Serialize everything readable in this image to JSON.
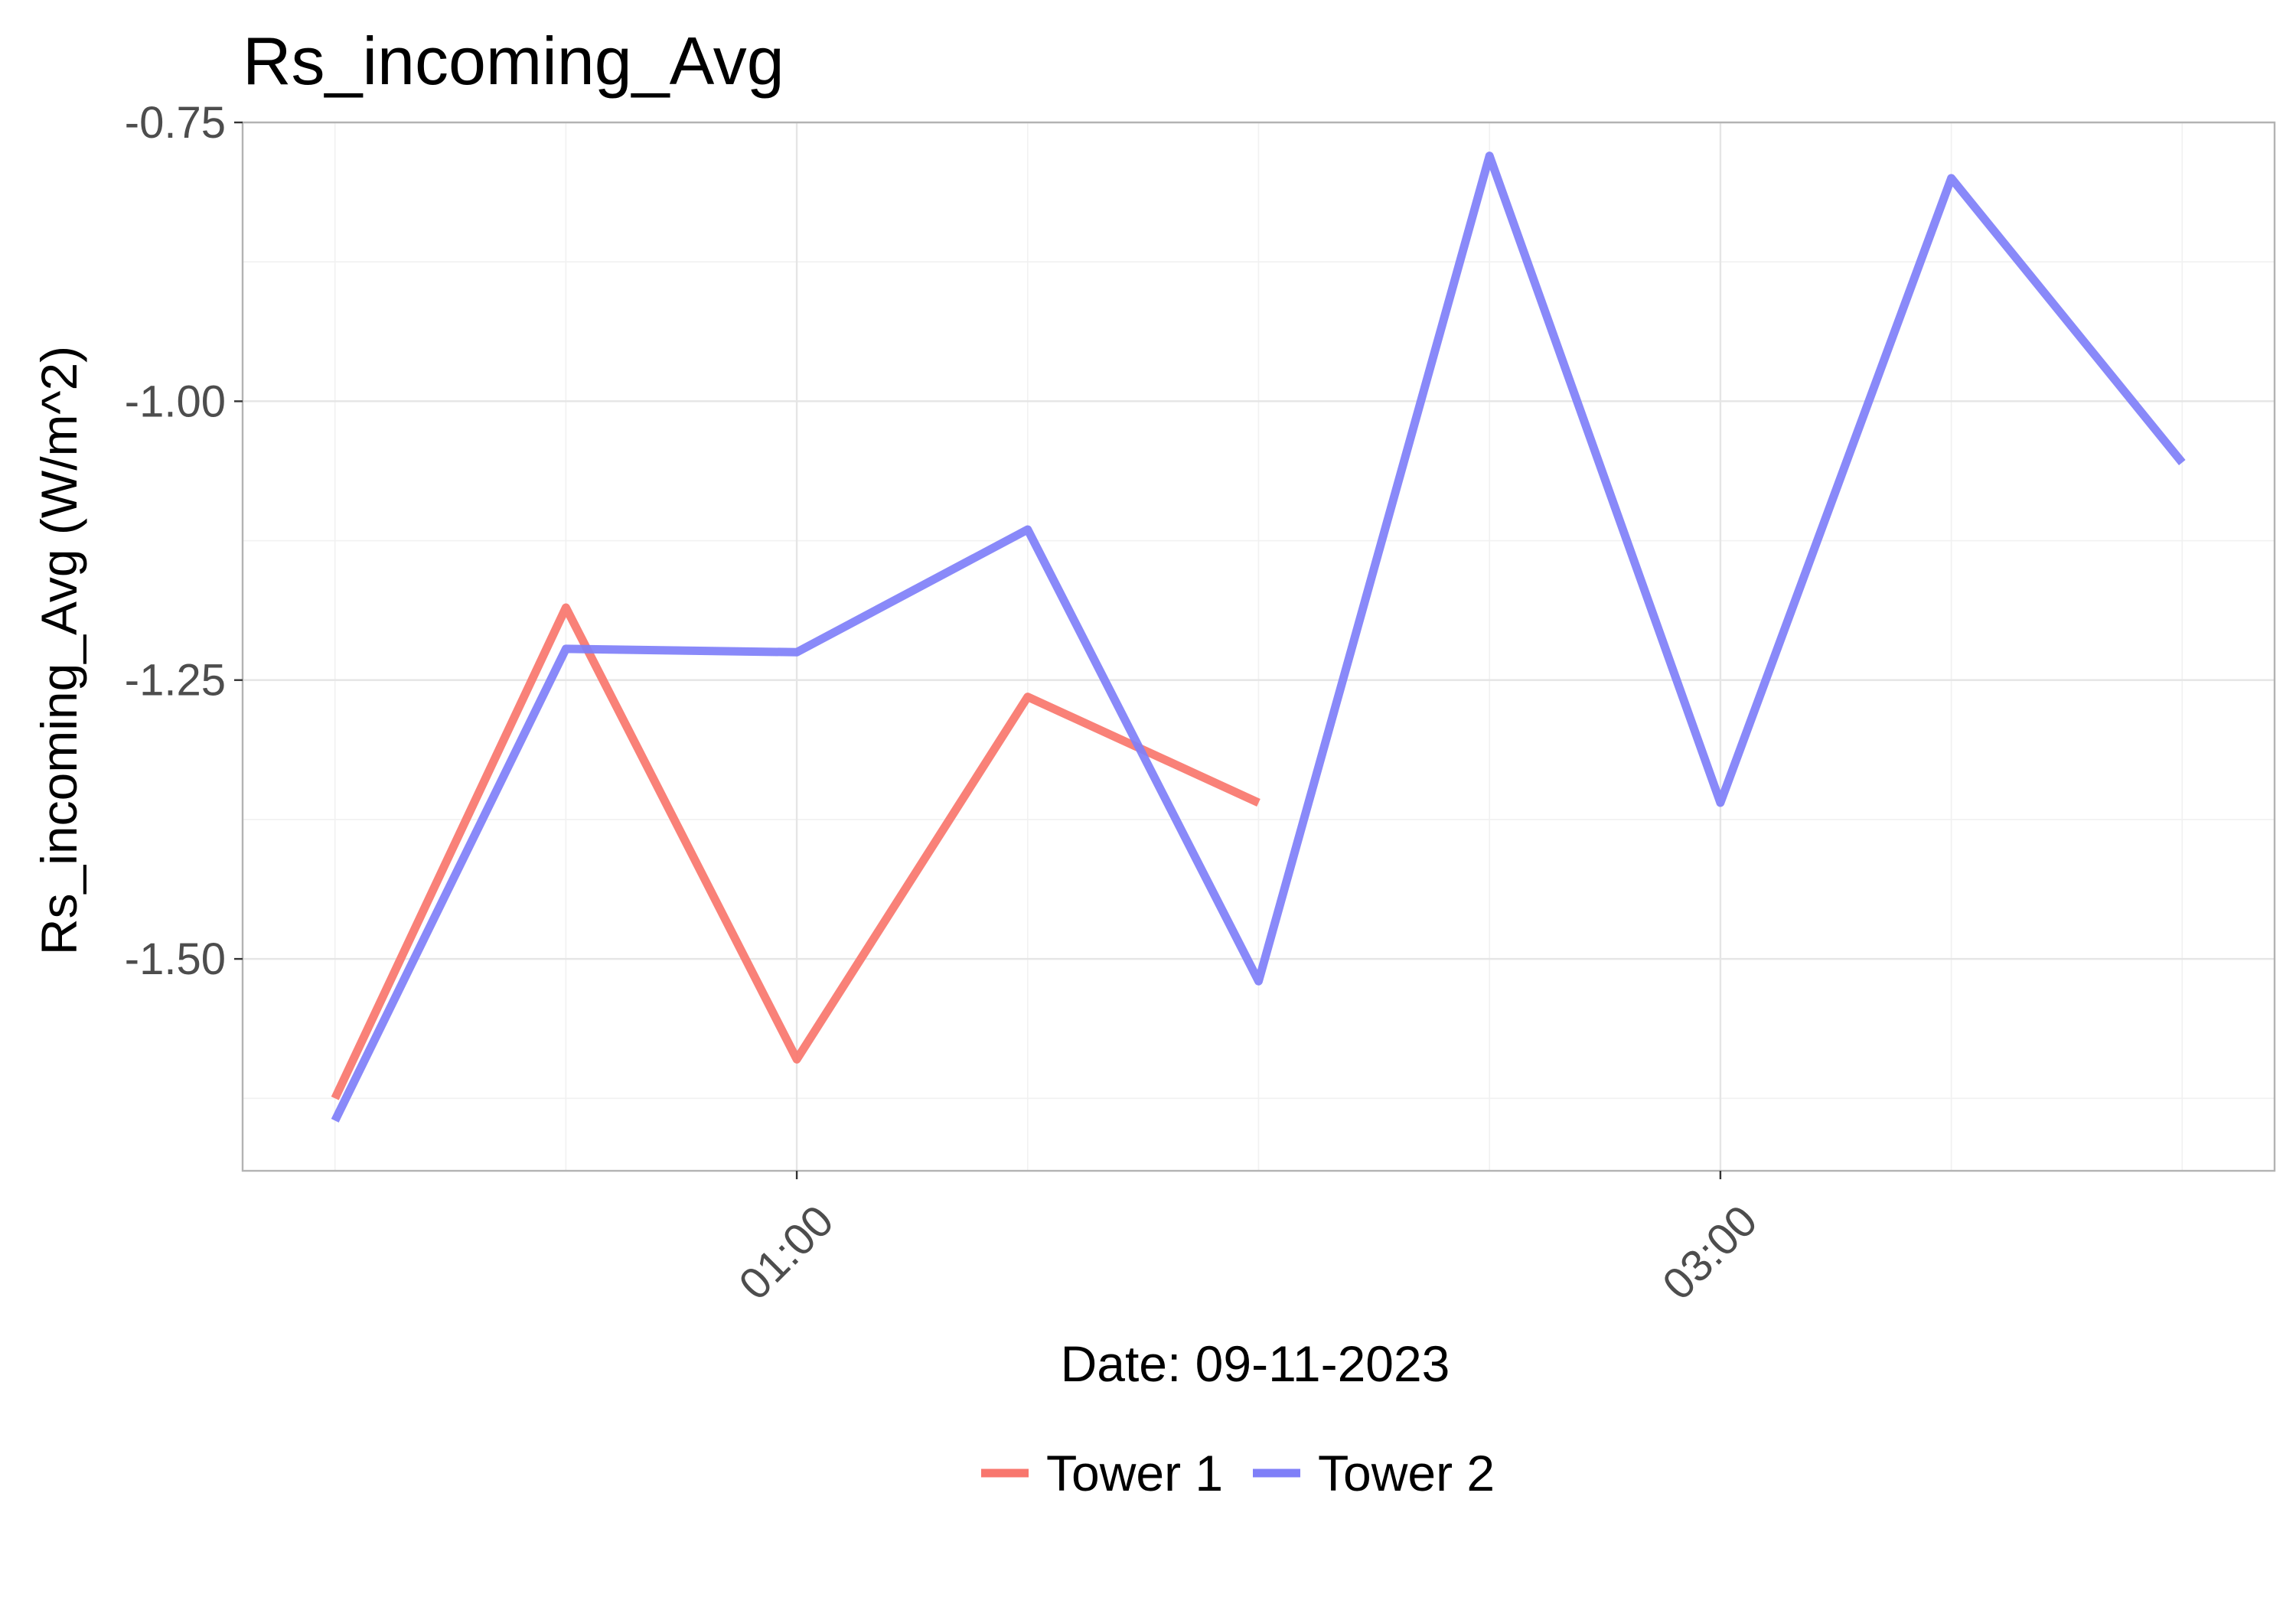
{
  "chart_data": {
    "type": "line",
    "title": "Rs_incoming_Avg",
    "xlabel": "Date: 09-11-2023",
    "ylabel": "Rs_incoming_Avg (W/m^2)",
    "x": [
      "00:00",
      "00:30",
      "01:00",
      "01:30",
      "02:00",
      "02:30",
      "03:00",
      "03:30",
      "04:00"
    ],
    "x_ticks": [
      {
        "x": "01:00",
        "label": "01:00"
      },
      {
        "x": "03:00",
        "label": "03:00"
      }
    ],
    "y_ticks": [
      {
        "value": -0.75,
        "label": "-0.75"
      },
      {
        "value": -1.0,
        "label": "-1.00"
      },
      {
        "value": -1.25,
        "label": "-1.25"
      },
      {
        "value": -1.5,
        "label": "-1.50"
      }
    ],
    "xlim": [
      "-00:12",
      "04:12"
    ],
    "ylim": [
      -1.69,
      -0.75
    ],
    "grid": true,
    "legend_position": "bottom",
    "series": [
      {
        "name": "Tower 1",
        "color": "#f8766d",
        "x": [
          "00:00",
          "00:30",
          "01:00",
          "01:30",
          "02:00"
        ],
        "values": [
          -1.625,
          -1.185,
          -1.59,
          -1.265,
          -1.36
        ]
      },
      {
        "name": "Tower 2",
        "color": "#7f7ff8",
        "x": [
          "00:00",
          "00:30",
          "01:00",
          "01:30",
          "02:00",
          "02:30",
          "03:00",
          "03:30",
          "04:00"
        ],
        "values": [
          -1.645,
          -1.222,
          -1.225,
          -1.115,
          -1.52,
          -0.78,
          -1.36,
          -0.8,
          -1.055
        ]
      }
    ]
  }
}
